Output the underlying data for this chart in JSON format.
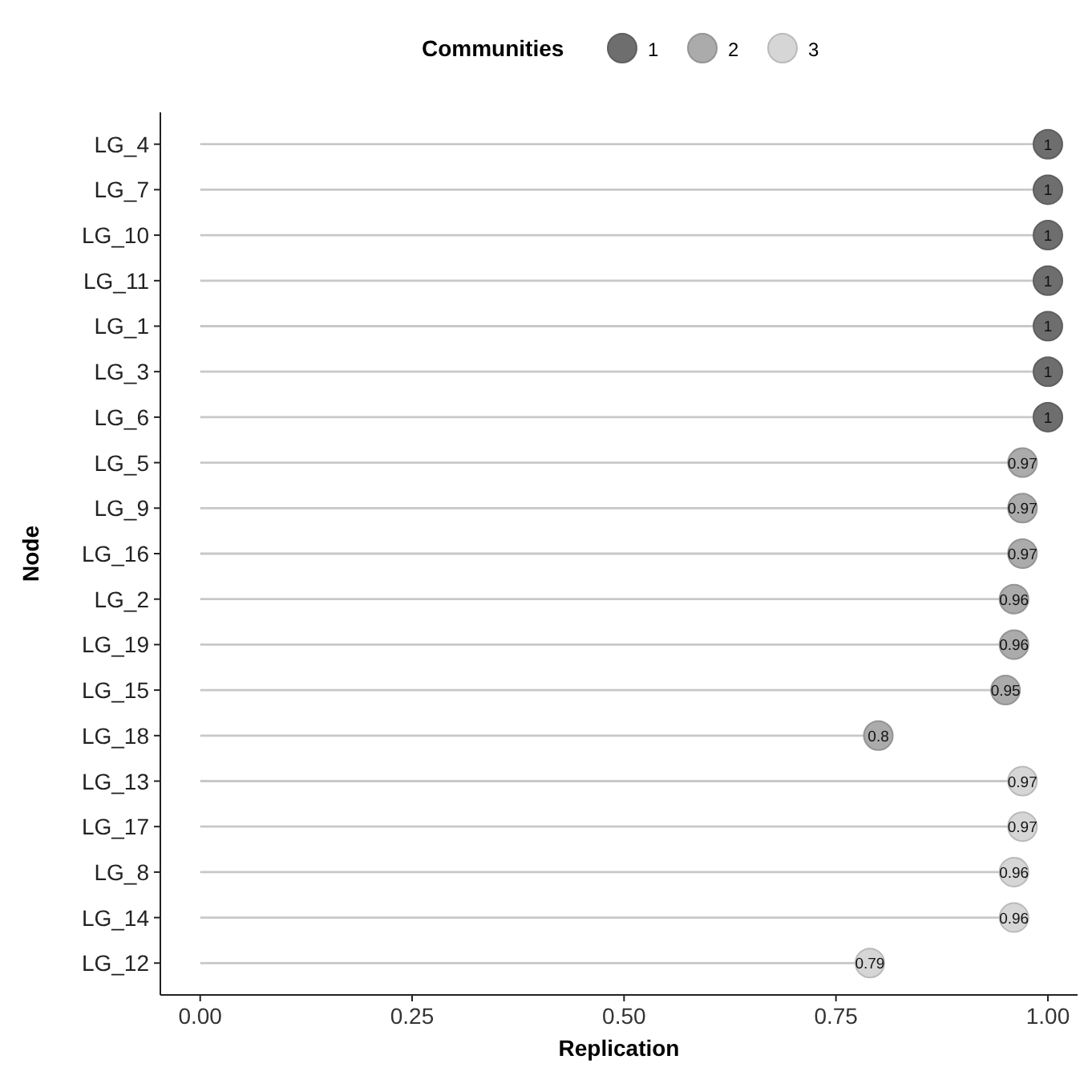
{
  "chart_data": {
    "type": "lollipop",
    "orientation": "horizontal",
    "xlabel": "Replication",
    "ylabel": "Node",
    "legend_title": "Communities",
    "legend": "top",
    "grid": false,
    "marker": "circle",
    "data_labels": true,
    "categories": [
      "LG_4",
      "LG_7",
      "LG_10",
      "LG_11",
      "LG_1",
      "LG_3",
      "LG_6",
      "LG_5",
      "LG_9",
      "LG_16",
      "LG_2",
      "LG_19",
      "LG_15",
      "LG_18",
      "LG_13",
      "LG_17",
      "LG_8",
      "LG_14",
      "LG_12"
    ],
    "series": [
      {
        "name": "1",
        "color": "#6e6e6e",
        "values": [
          1,
          1,
          1,
          1,
          1,
          1,
          1,
          null,
          null,
          null,
          null,
          null,
          null,
          null,
          null,
          null,
          null,
          null,
          null
        ]
      },
      {
        "name": "2",
        "color": "#ababab",
        "values": [
          null,
          null,
          null,
          null,
          null,
          null,
          null,
          0.97,
          0.97,
          0.97,
          0.96,
          0.96,
          0.95,
          0.8,
          null,
          null,
          null,
          null,
          null
        ]
      },
      {
        "name": "3",
        "color": "#d6d6d6",
        "values": [
          null,
          null,
          null,
          null,
          null,
          null,
          null,
          null,
          null,
          null,
          null,
          null,
          null,
          null,
          0.97,
          0.97,
          0.96,
          0.96,
          0.79
        ]
      }
    ],
    "xlim": [
      -0.047,
      1.035
    ],
    "xticks": [
      {
        "value": 0,
        "label": "0.00"
      },
      {
        "value": 0.25,
        "label": "0.25"
      },
      {
        "value": 0.5,
        "label": "0.50"
      },
      {
        "value": 0.75,
        "label": "0.75"
      },
      {
        "value": 1,
        "label": "1.00"
      }
    ]
  }
}
